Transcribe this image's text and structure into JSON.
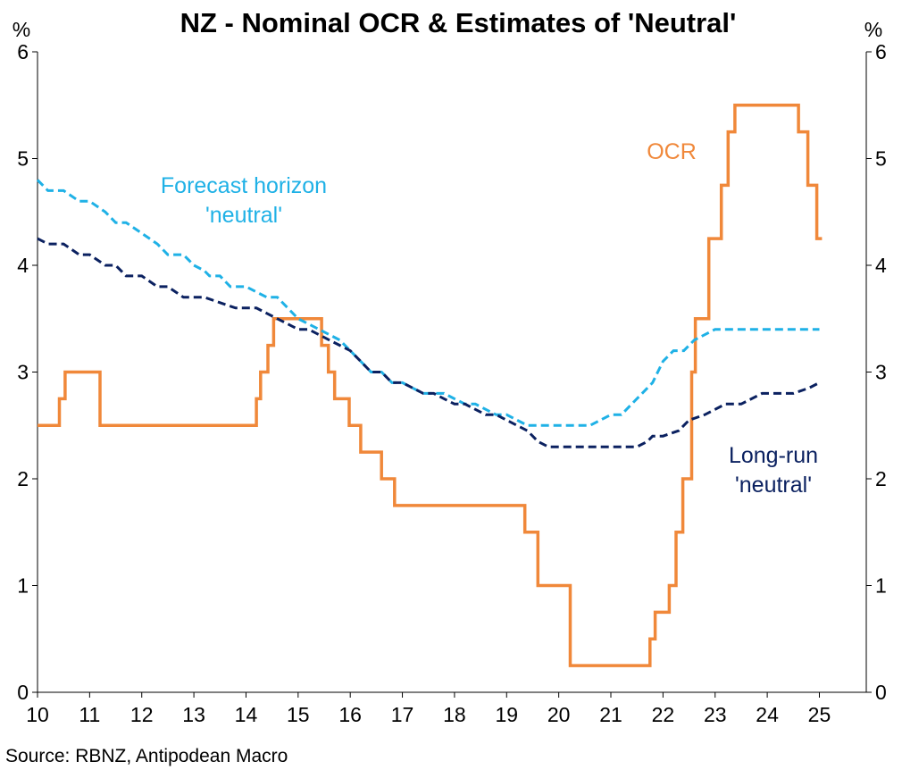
{
  "chart_data": {
    "type": "line",
    "title": "NZ - Nominal OCR & Estimates of 'Neutral'",
    "y_unit_left": "%",
    "y_unit_right": "%",
    "ylim": [
      0,
      6
    ],
    "y_ticks": [
      "0",
      "1",
      "2",
      "3",
      "4",
      "5",
      "6"
    ],
    "xlim": [
      2010,
      2025.9
    ],
    "x_ticks": [
      "10",
      "11",
      "12",
      "13",
      "14",
      "15",
      "16",
      "17",
      "18",
      "19",
      "20",
      "21",
      "22",
      "23",
      "24",
      "25"
    ],
    "grid": false,
    "source": "Source: RBNZ, Antipodean Macro",
    "colors": {
      "ocr": "#F0883A",
      "forecast": "#1FB1E6",
      "longrun": "#0B2160"
    },
    "series": [
      {
        "key": "ocr",
        "name": "OCR",
        "style": "solid",
        "step": true,
        "points": [
          [
            2010.0,
            2.5
          ],
          [
            2010.42,
            2.75
          ],
          [
            2010.53,
            3.0
          ],
          [
            2011.2,
            2.5
          ],
          [
            2014.2,
            2.75
          ],
          [
            2014.28,
            3.0
          ],
          [
            2014.42,
            3.25
          ],
          [
            2014.53,
            3.5
          ],
          [
            2015.45,
            3.25
          ],
          [
            2015.58,
            3.0
          ],
          [
            2015.7,
            2.75
          ],
          [
            2015.98,
            2.5
          ],
          [
            2016.2,
            2.25
          ],
          [
            2016.6,
            2.0
          ],
          [
            2016.85,
            1.75
          ],
          [
            2019.35,
            1.5
          ],
          [
            2019.6,
            1.0
          ],
          [
            2020.22,
            0.25
          ],
          [
            2021.75,
            0.5
          ],
          [
            2021.85,
            0.75
          ],
          [
            2022.12,
            1.0
          ],
          [
            2022.25,
            1.5
          ],
          [
            2022.38,
            2.0
          ],
          [
            2022.55,
            3.0
          ],
          [
            2022.62,
            3.5
          ],
          [
            2022.88,
            4.25
          ],
          [
            2023.12,
            4.75
          ],
          [
            2023.25,
            5.25
          ],
          [
            2023.38,
            5.5
          ],
          [
            2024.6,
            5.25
          ],
          [
            2024.78,
            4.75
          ],
          [
            2024.95,
            4.25
          ],
          [
            2025.05,
            4.25
          ]
        ],
        "label": "OCR"
      },
      {
        "key": "forecast",
        "name": "Forecast horizon 'neutral'",
        "style": "dashed",
        "step": false,
        "points": [
          [
            2010.0,
            4.8
          ],
          [
            2010.2,
            4.7
          ],
          [
            2010.5,
            4.7
          ],
          [
            2010.8,
            4.6
          ],
          [
            2011.0,
            4.6
          ],
          [
            2011.3,
            4.5
          ],
          [
            2011.5,
            4.4
          ],
          [
            2011.7,
            4.4
          ],
          [
            2012.0,
            4.3
          ],
          [
            2012.3,
            4.2
          ],
          [
            2012.5,
            4.1
          ],
          [
            2012.8,
            4.1
          ],
          [
            2013.0,
            4.0
          ],
          [
            2013.2,
            3.95
          ],
          [
            2013.3,
            3.9
          ],
          [
            2013.5,
            3.9
          ],
          [
            2013.7,
            3.8
          ],
          [
            2014.0,
            3.8
          ],
          [
            2014.2,
            3.75
          ],
          [
            2014.4,
            3.7
          ],
          [
            2014.6,
            3.7
          ],
          [
            2014.8,
            3.6
          ],
          [
            2015.0,
            3.5
          ],
          [
            2015.2,
            3.45
          ],
          [
            2015.4,
            3.4
          ],
          [
            2015.6,
            3.35
          ],
          [
            2015.8,
            3.3
          ],
          [
            2016.0,
            3.2
          ],
          [
            2016.2,
            3.1
          ],
          [
            2016.4,
            3.0
          ],
          [
            2016.6,
            3.0
          ],
          [
            2016.8,
            2.9
          ],
          [
            2017.0,
            2.9
          ],
          [
            2017.2,
            2.85
          ],
          [
            2017.4,
            2.8
          ],
          [
            2017.6,
            2.8
          ],
          [
            2017.8,
            2.8
          ],
          [
            2018.0,
            2.75
          ],
          [
            2018.2,
            2.7
          ],
          [
            2018.4,
            2.7
          ],
          [
            2018.6,
            2.65
          ],
          [
            2018.8,
            2.6
          ],
          [
            2019.0,
            2.6
          ],
          [
            2019.2,
            2.55
          ],
          [
            2019.4,
            2.5
          ],
          [
            2019.6,
            2.5
          ],
          [
            2019.8,
            2.5
          ],
          [
            2020.0,
            2.5
          ],
          [
            2020.2,
            2.5
          ],
          [
            2020.4,
            2.5
          ],
          [
            2020.6,
            2.5
          ],
          [
            2020.8,
            2.55
          ],
          [
            2021.0,
            2.6
          ],
          [
            2021.2,
            2.6
          ],
          [
            2021.4,
            2.7
          ],
          [
            2021.6,
            2.8
          ],
          [
            2021.8,
            2.9
          ],
          [
            2022.0,
            3.1
          ],
          [
            2022.2,
            3.2
          ],
          [
            2022.4,
            3.2
          ],
          [
            2022.6,
            3.3
          ],
          [
            2022.8,
            3.35
          ],
          [
            2023.0,
            3.4
          ],
          [
            2023.3,
            3.4
          ],
          [
            2023.6,
            3.4
          ],
          [
            2023.9,
            3.4
          ],
          [
            2024.2,
            3.4
          ],
          [
            2024.5,
            3.4
          ],
          [
            2024.8,
            3.4
          ],
          [
            2025.0,
            3.4
          ]
        ],
        "label_line1": "Forecast horizon",
        "label_line2": "'neutral'"
      },
      {
        "key": "longrun",
        "name": "Long-run 'neutral'",
        "style": "dashed",
        "step": false,
        "points": [
          [
            2010.0,
            4.25
          ],
          [
            2010.2,
            4.2
          ],
          [
            2010.5,
            4.2
          ],
          [
            2010.8,
            4.1
          ],
          [
            2011.0,
            4.1
          ],
          [
            2011.3,
            4.0
          ],
          [
            2011.5,
            4.0
          ],
          [
            2011.7,
            3.9
          ],
          [
            2012.0,
            3.9
          ],
          [
            2012.3,
            3.8
          ],
          [
            2012.5,
            3.8
          ],
          [
            2012.8,
            3.7
          ],
          [
            2013.0,
            3.7
          ],
          [
            2013.2,
            3.7
          ],
          [
            2013.5,
            3.65
          ],
          [
            2013.8,
            3.6
          ],
          [
            2014.0,
            3.6
          ],
          [
            2014.2,
            3.6
          ],
          [
            2014.4,
            3.55
          ],
          [
            2014.6,
            3.5
          ],
          [
            2014.8,
            3.45
          ],
          [
            2015.0,
            3.4
          ],
          [
            2015.2,
            3.4
          ],
          [
            2015.4,
            3.35
          ],
          [
            2015.6,
            3.3
          ],
          [
            2015.8,
            3.25
          ],
          [
            2016.0,
            3.2
          ],
          [
            2016.2,
            3.1
          ],
          [
            2016.4,
            3.0
          ],
          [
            2016.6,
            3.0
          ],
          [
            2016.8,
            2.9
          ],
          [
            2017.0,
            2.9
          ],
          [
            2017.2,
            2.85
          ],
          [
            2017.4,
            2.8
          ],
          [
            2017.6,
            2.8
          ],
          [
            2017.8,
            2.75
          ],
          [
            2018.0,
            2.7
          ],
          [
            2018.2,
            2.7
          ],
          [
            2018.4,
            2.65
          ],
          [
            2018.6,
            2.6
          ],
          [
            2018.8,
            2.6
          ],
          [
            2019.0,
            2.55
          ],
          [
            2019.2,
            2.5
          ],
          [
            2019.4,
            2.45
          ],
          [
            2019.6,
            2.35
          ],
          [
            2019.8,
            2.3
          ],
          [
            2020.0,
            2.3
          ],
          [
            2020.3,
            2.3
          ],
          [
            2020.6,
            2.3
          ],
          [
            2020.9,
            2.3
          ],
          [
            2021.2,
            2.3
          ],
          [
            2021.5,
            2.3
          ],
          [
            2021.7,
            2.35
          ],
          [
            2021.8,
            2.4
          ],
          [
            2022.0,
            2.4
          ],
          [
            2022.3,
            2.45
          ],
          [
            2022.5,
            2.55
          ],
          [
            2022.8,
            2.6
          ],
          [
            2023.0,
            2.65
          ],
          [
            2023.2,
            2.7
          ],
          [
            2023.5,
            2.7
          ],
          [
            2023.7,
            2.75
          ],
          [
            2023.9,
            2.8
          ],
          [
            2024.2,
            2.8
          ],
          [
            2024.5,
            2.8
          ],
          [
            2024.8,
            2.85
          ],
          [
            2025.0,
            2.9
          ]
        ],
        "label_line1": "Long-run",
        "label_line2": "'neutral'"
      }
    ]
  }
}
